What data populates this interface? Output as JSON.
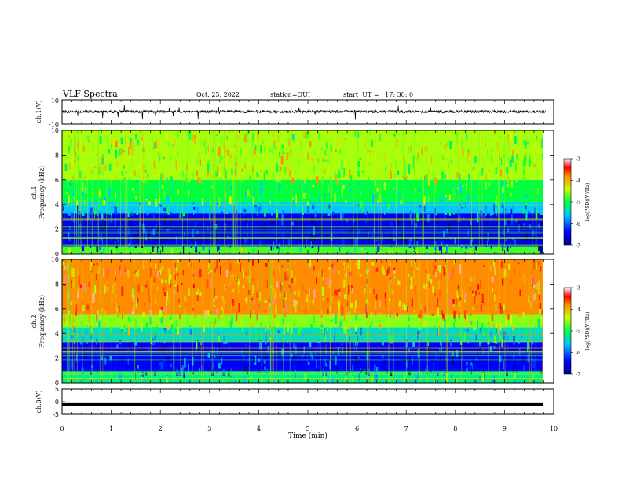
{
  "header": {
    "title": "VLF Spectra",
    "date": "Oct. 25, 2022",
    "station": "station=OUI",
    "start": "start  UT =   17: 30: 0"
  },
  "chart_data": [
    {
      "type": "line",
      "panel": "ch1-waveform",
      "ylabel": "ch.1(V)",
      "ylim": [
        -10,
        10
      ],
      "yticks": [
        "10",
        "-10"
      ],
      "series": [
        {
          "values_note": "noise-like waveform centred near 0 V",
          "baseline": 0
        }
      ],
      "xlim": [
        0,
        10
      ]
    },
    {
      "type": "heatmap",
      "panel": "ch1-spectrogram",
      "ylabel": "ch.1\nFrequency (kHz)",
      "ylabel_line1": "ch.1",
      "ylabel_line2": "Frequency (kHz)",
      "ylim": [
        0,
        10
      ],
      "yticks": [
        "0",
        "2",
        "4",
        "6",
        "8",
        "10"
      ],
      "xlim": [
        0,
        9.83
      ],
      "colorbar": {
        "label": "log(PSD)(V²/Hz)",
        "range": [
          -7,
          -3
        ],
        "ticks": [
          "-3",
          "-4",
          "-5",
          "-6",
          "-7"
        ]
      },
      "levels": [
        {
          "f_max": 0.6,
          "log_psd": -4.8
        },
        {
          "f_max": 3.3,
          "log_psd": -6.5
        },
        {
          "f_max": 4.2,
          "log_psd": -5.6
        },
        {
          "f_max": 6.0,
          "log_psd": -5.0
        },
        {
          "f_max": 10.0,
          "log_psd": -4.5
        }
      ]
    },
    {
      "type": "heatmap",
      "panel": "ch2-spectrogram",
      "ylabel_line1": "ch.2",
      "ylabel_line2": "Frequency (kHz)",
      "ylim": [
        0,
        10
      ],
      "yticks": [
        "0",
        "2",
        "4",
        "6",
        "8",
        "10"
      ],
      "xlim": [
        0,
        9.83
      ],
      "colorbar": {
        "label": "log(PSD)(V²/Hz)",
        "range": [
          -7,
          -3
        ],
        "ticks": [
          "-3",
          "-4",
          "-5",
          "-6",
          "-7"
        ]
      },
      "levels": [
        {
          "f_max": 0.9,
          "log_psd": -5.2
        },
        {
          "f_max": 3.3,
          "log_psd": -6.4
        },
        {
          "f_max": 4.5,
          "log_psd": -5.4
        },
        {
          "f_max": 5.5,
          "log_psd": -4.6
        },
        {
          "f_max": 10.0,
          "log_psd": -3.8
        }
      ]
    },
    {
      "type": "line",
      "panel": "ch3-waveform",
      "ylabel": "ch.3(V)",
      "ylim": [
        -5,
        5
      ],
      "yticks": [
        "5",
        "0",
        "-5"
      ],
      "series": [
        {
          "constant": -1.2
        }
      ],
      "xlim": [
        0,
        9.83
      ]
    }
  ],
  "xaxis": {
    "label": "Time (min)",
    "ticks": [
      "0",
      "1",
      "2",
      "3",
      "4",
      "5",
      "6",
      "7",
      "8",
      "9",
      "10"
    ],
    "range": [
      0,
      10
    ]
  }
}
